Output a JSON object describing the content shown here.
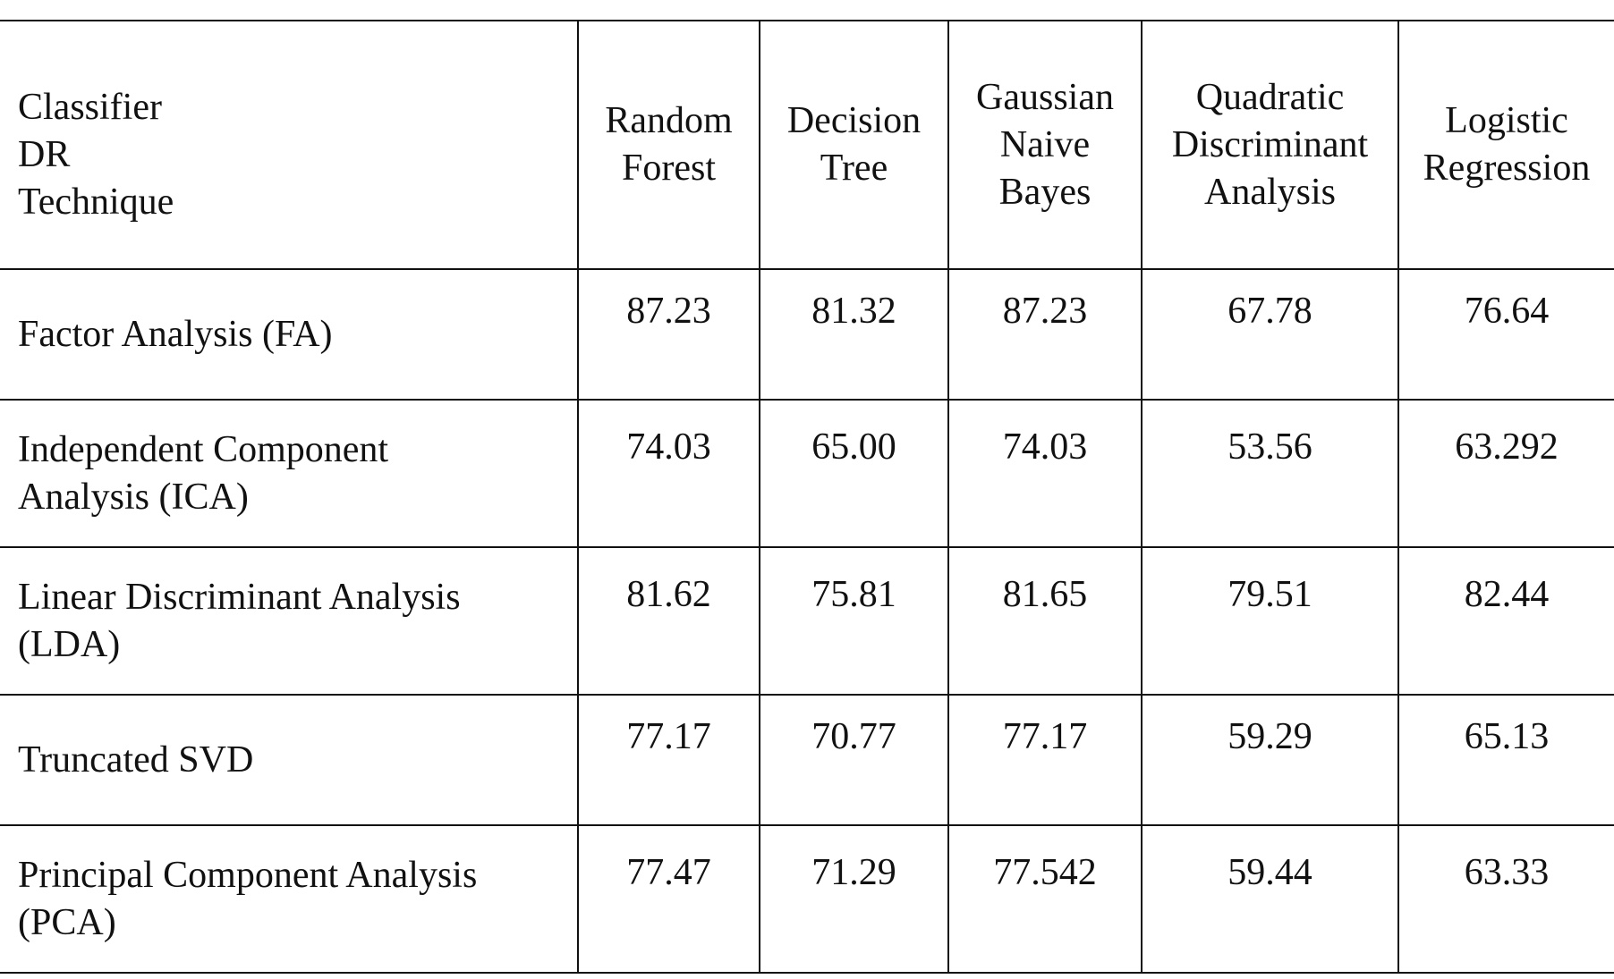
{
  "table": {
    "corner_header": [
      "Classifier",
      "DR",
      "Technique"
    ],
    "columns": [
      [
        "Random",
        "Forest"
      ],
      [
        "Decision",
        "Tree"
      ],
      [
        "Gaussian",
        "Naive",
        "Bayes"
      ],
      [
        "Quadratic",
        "Discriminant",
        "Analysis"
      ],
      [
        "Logistic",
        "Regression"
      ]
    ],
    "rows": [
      {
        "label": [
          "Factor Analysis (FA)"
        ],
        "values": [
          "87.23",
          "81.32",
          "87.23",
          "67.78",
          "76.64"
        ],
        "bold_index": 0
      },
      {
        "label": [
          "Independent Component",
          "Analysis (ICA)"
        ],
        "values": [
          "74.03",
          "65.00",
          "74.03",
          "53.56",
          "63.292"
        ]
      },
      {
        "label": [
          "Linear Discriminant Analysis",
          "(LDA)"
        ],
        "values": [
          "81.62",
          "75.81",
          "81.65",
          "79.51",
          "82.44"
        ]
      },
      {
        "label": [
          "Truncated SVD"
        ],
        "values": [
          "77.17",
          "70.77",
          "77.17",
          "59.29",
          "65.13"
        ]
      },
      {
        "label": [
          "Principal Component Analysis",
          "(PCA)"
        ],
        "values": [
          "77.47",
          "71.29",
          "77.542",
          "59.44",
          "63.33"
        ]
      }
    ]
  }
}
